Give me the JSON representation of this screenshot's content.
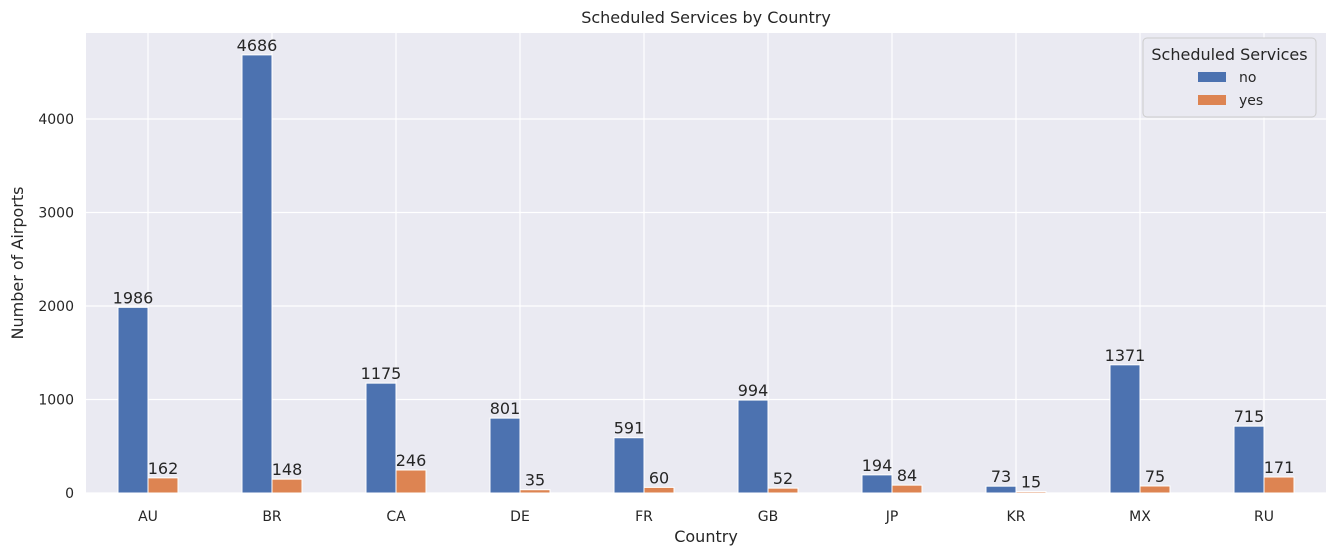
{
  "chart_data": {
    "type": "bar",
    "title": "Scheduled Services by Country",
    "xlabel": "Country",
    "ylabel": "Number of Airports",
    "categories": [
      "AU",
      "BR",
      "CA",
      "DE",
      "FR",
      "GB",
      "JP",
      "KR",
      "MX",
      "RU"
    ],
    "series": [
      {
        "name": "no",
        "color": "#4c72b0",
        "values": [
          1986,
          4686,
          1175,
          801,
          591,
          994,
          194,
          73,
          1371,
          715
        ]
      },
      {
        "name": "yes",
        "color": "#dd8452",
        "values": [
          162,
          148,
          246,
          35,
          60,
          52,
          84,
          15,
          75,
          171
        ]
      }
    ],
    "ylim": [
      0,
      4920
    ],
    "yticks": [
      0,
      1000,
      2000,
      3000,
      4000
    ],
    "grid": true,
    "legend": {
      "title": "Scheduled Services",
      "placement": "top-right"
    },
    "background_color": "#eaeaf2",
    "grid_color": "#ffffff"
  }
}
